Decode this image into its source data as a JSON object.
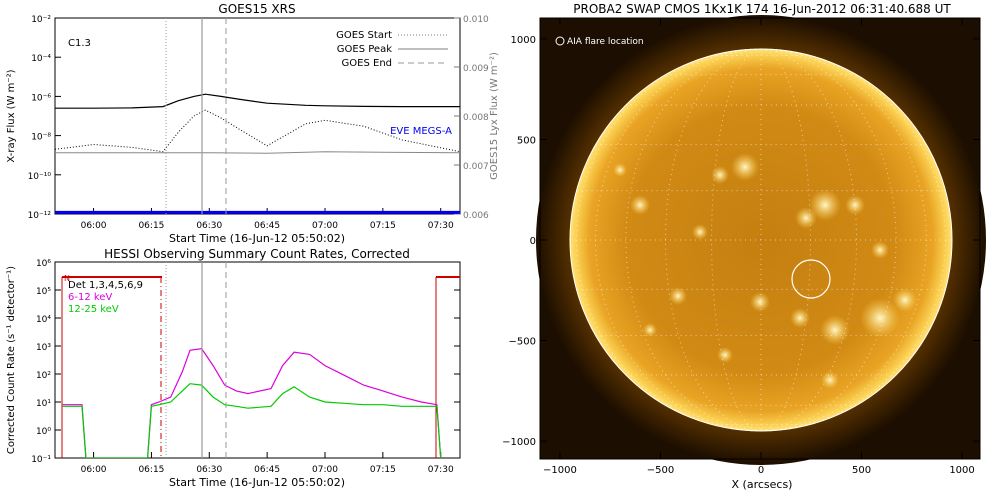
{
  "goes": {
    "title": "GOES15 XRS",
    "class_label": "C1.3",
    "ylabel_left": "X-ray Flux (W m⁻²)",
    "ylabel_right": "GOES15 Lyx Flux (W m⁻²)",
    "xlabel": "Start Time (16-Jun-12 05:50:02)",
    "legend": [
      "GOES Start",
      "GOES Peak",
      "GOES End"
    ],
    "eve_label": "EVE MEGS-A",
    "eve_color": "#0000ee",
    "left_ticks": [
      "10⁻²",
      "10⁻⁴",
      "10⁻⁶",
      "10⁻⁸",
      "10⁻¹⁰",
      "10⁻¹²"
    ],
    "right_ticks": [
      "0.010",
      "0.009",
      "0.008",
      "0.007",
      "0.006"
    ],
    "x_ticks": [
      "06:00",
      "06:15",
      "06:30",
      "06:45",
      "07:00",
      "07:15",
      "07:30"
    ]
  },
  "hessi": {
    "title": "HESSI Observing Summary Count Rates, Corrected",
    "ylabel": "Corrected Count Rate (s⁻¹ detector⁻¹)",
    "xlabel": "Start Time (16-Jun-12 05:50:02)",
    "legend": [
      {
        "label": "Det 1,3,4,5,6,9",
        "color": "#000000"
      },
      {
        "label": "6-12 keV",
        "color": "#dd00dd"
      },
      {
        "label": "12-25 keV",
        "color": "#00dd00"
      }
    ],
    "night_marker": "N",
    "y_ticks": [
      "10⁶",
      "10⁵",
      "10⁴",
      "10³",
      "10²",
      "10¹",
      "10⁰",
      "10⁻¹"
    ],
    "x_ticks": [
      "06:00",
      "06:15",
      "06:30",
      "06:45",
      "07:00",
      "07:15",
      "07:30"
    ]
  },
  "swap": {
    "title": "PROBA2 SWAP CMOS 1Kx1K 174 16-Jun-2012 06:31:40.688 UT",
    "overlay_label": "AIA flare location",
    "xlabel": "X (arcsecs)",
    "x_ticks": [
      "−1000",
      "−500",
      "0",
      "500",
      "1000"
    ],
    "y_ticks": [
      "1000",
      "500",
      "0",
      "−500",
      "−1000"
    ]
  },
  "chart_data": [
    {
      "type": "line",
      "title": "GOES15 XRS",
      "xlabel": "Start Time (16-Jun-12 05:50:02)",
      "ylabel": "X-ray Flux (W m⁻²)",
      "ylabel_right": "GOES15 Lyx Flux (W m⁻²)",
      "y_scale": "log",
      "xlim": [
        "05:50",
        "07:35"
      ],
      "ylim": [
        1e-12,
        0.01
      ],
      "ylim_right": [
        0.006,
        0.01
      ],
      "grid": false,
      "legend_position": "top-right",
      "vertical_lines": [
        {
          "name": "GOES Start",
          "time": "06:20",
          "style": "dotted"
        },
        {
          "name": "GOES Peak",
          "time": "06:29",
          "style": "solid"
        },
        {
          "name": "GOES End",
          "time": "06:35",
          "style": "dashed"
        }
      ],
      "series": [
        {
          "time": [
            "05:50",
            "06:00",
            "06:10",
            "06:18",
            "06:22",
            "06:26",
            "06:29",
            "06:33",
            "06:38",
            "06:45",
            "06:55",
            "07:00",
            "07:10",
            "07:20",
            "07:35"
          ],
          "values": [
            2.5e-07,
            2.5e-07,
            2.6e-07,
            3e-07,
            6e-07,
            1e-06,
            1.3e-06,
            1e-06,
            7e-07,
            4.5e-07,
            3.5e-07,
            3.3e-07,
            3.1e-07,
            3e-07,
            3e-07
          ]
        },
        {
          "time": [
            "05:50",
            "06:00",
            "06:10",
            "06:18",
            "06:22",
            "06:26",
            "06:29",
            "06:33",
            "06:38",
            "06:45",
            "06:55",
            "07:00",
            "07:10",
            "07:20",
            "07:35"
          ],
          "values": [
            2e-09,
            3.5e-09,
            2.5e-09,
            1.5e-09,
            1.5e-08,
            1e-07,
            2e-07,
            8e-08,
            2e-08,
            3e-09,
            4e-08,
            6e-08,
            3e-08,
            6e-09,
            1.5e-09
          ]
        },
        {
          "time": [
            "05:50",
            "06:20",
            "06:30",
            "06:45",
            "07:00",
            "07:35"
          ],
          "values": [
            0.00725,
            0.00725,
            0.00725,
            0.00724,
            0.00727,
            0.00725
          ]
        },
        {
          "name": "EVE MEGS-A",
          "time": [
            "05:50",
            "07:35"
          ],
          "values": [
            1.2e-12,
            1.2e-12
          ]
        }
      ]
    },
    {
      "type": "line",
      "title": "HESSI Observing Summary Count Rates, Corrected",
      "xlabel": "Start Time (16-Jun-12 05:50:02)",
      "ylabel": "Corrected Count Rate (s⁻¹ detector⁻¹)",
      "y_scale": "log",
      "xlim": [
        "05:50",
        "07:35"
      ],
      "ylim": [
        0.1,
        1000000.0
      ],
      "grid": false,
      "legend_position": "top-left",
      "series": [
        {
          "name": "6-12 keV",
          "time": [
            "05:52",
            "05:57",
            "05:58",
            "06:14",
            "06:15",
            "06:17",
            "06:20",
            "06:23",
            "06:25",
            "06:28",
            "06:31",
            "06:34",
            "06:37",
            "06:40",
            "06:46",
            "06:49",
            "06:52",
            "06:56",
            "07:00",
            "07:05",
            "07:10",
            "07:15",
            "07:20",
            "07:25",
            "07:29",
            "07:30"
          ],
          "values": [
            8,
            8,
            0.1,
            0.1,
            8,
            10,
            15,
            120,
            700,
            800,
            200,
            40,
            25,
            20,
            30,
            200,
            600,
            500,
            200,
            90,
            40,
            25,
            15,
            10,
            8,
            0.1
          ]
        },
        {
          "name": "12-25 keV",
          "time": [
            "05:52",
            "05:57",
            "05:58",
            "06:14",
            "06:15",
            "06:17",
            "06:20",
            "06:23",
            "06:25",
            "06:28",
            "06:31",
            "06:34",
            "06:37",
            "06:40",
            "06:46",
            "06:49",
            "06:52",
            "06:56",
            "07:00",
            "07:05",
            "07:10",
            "07:15",
            "07:20",
            "07:25",
            "07:29",
            "07:30"
          ],
          "values": [
            7,
            7,
            0.1,
            0.1,
            7,
            8,
            10,
            25,
            45,
            40,
            15,
            8,
            7,
            6,
            7,
            20,
            35,
            15,
            10,
            9,
            8,
            8,
            7,
            7,
            7,
            0.1
          ]
        }
      ]
    }
  ]
}
